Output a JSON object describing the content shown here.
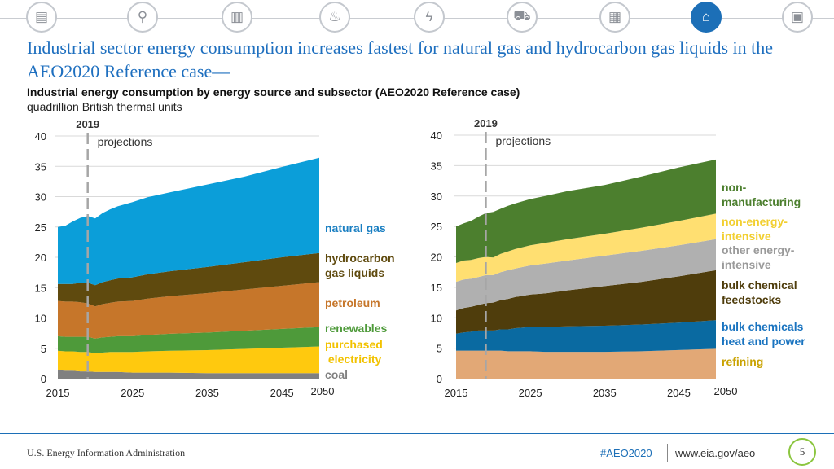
{
  "nav": {
    "icons": [
      {
        "name": "overview-icon",
        "glyph": "▤"
      },
      {
        "name": "analysis-icon",
        "glyph": "⚲"
      },
      {
        "name": "oil-barrel-icon",
        "glyph": "▥"
      },
      {
        "name": "natural-gas-flame-icon",
        "glyph": "♨"
      },
      {
        "name": "electricity-icon",
        "glyph": "ϟ"
      },
      {
        "name": "transportation-car-icon",
        "glyph": "⛟"
      },
      {
        "name": "buildings-icon",
        "glyph": "▦"
      },
      {
        "name": "industrial-factory-icon",
        "glyph": "⌂",
        "active": true
      },
      {
        "name": "documents-icon",
        "glyph": "▣"
      }
    ]
  },
  "header": {
    "title": "Industrial sector energy consumption increases fastest for natural gas and hydrocarbon gas liquids in the AEO2020 Reference case—",
    "subtitle": "Industrial energy consumption by energy source and subsector (AEO2020 Reference case)",
    "units": "quadrillion British thermal units"
  },
  "chart_data": [
    {
      "type": "area",
      "stacked": true,
      "title": "Industrial energy consumption by energy source",
      "x": [
        2015,
        2016,
        2017,
        2018,
        2019,
        2020,
        2021,
        2022,
        2023,
        2025,
        2027,
        2030,
        2035,
        2040,
        2045,
        2050
      ],
      "ylim": [
        0,
        40
      ],
      "yticks": [
        "0",
        "5",
        "10",
        "15",
        "20",
        "25",
        "30",
        "35",
        "40"
      ],
      "xticks": [
        "2015",
        "2025",
        "2035",
        "2045",
        "2050"
      ],
      "annotation": {
        "year_label": "2019",
        "x": 2019,
        "text": "projections"
      },
      "series": [
        {
          "name": "coal",
          "label": "coal",
          "color": "#808080",
          "label_color": "#808080",
          "values": [
            1.4,
            1.3,
            1.3,
            1.2,
            1.2,
            1.1,
            1.1,
            1.1,
            1.1,
            1.0,
            1.0,
            1.0,
            0.9,
            0.9,
            0.9,
            0.9
          ]
        },
        {
          "name": "purchased-electricity",
          "label": "purchased\n electricity",
          "color": "#ffc90e",
          "label_color": "#f2c200",
          "values": [
            3.2,
            3.2,
            3.2,
            3.2,
            3.2,
            3.1,
            3.2,
            3.3,
            3.3,
            3.4,
            3.5,
            3.6,
            3.8,
            4.0,
            4.2,
            4.4
          ]
        },
        {
          "name": "renewables",
          "label": "renewables",
          "color": "#4e9a3a",
          "label_color": "#4e9a3a",
          "values": [
            2.4,
            2.4,
            2.4,
            2.5,
            2.5,
            2.4,
            2.5,
            2.5,
            2.6,
            2.6,
            2.7,
            2.8,
            2.9,
            3.0,
            3.1,
            3.2
          ]
        },
        {
          "name": "petroleum",
          "label": "petroleum",
          "color": "#c6762a",
          "label_color": "#c6762a",
          "values": [
            5.8,
            5.8,
            5.8,
            5.7,
            5.5,
            5.3,
            5.5,
            5.6,
            5.7,
            5.8,
            6.0,
            6.2,
            6.5,
            6.8,
            7.1,
            7.4
          ]
        },
        {
          "name": "hydrocarbon-gas-liquids",
          "label": "hydrocarbon\ngas liquids",
          "color": "#5f4a0e",
          "label_color": "#5f4a0e",
          "values": [
            2.8,
            2.9,
            2.9,
            3.2,
            3.4,
            3.5,
            3.6,
            3.7,
            3.8,
            3.9,
            4.0,
            4.1,
            4.3,
            4.5,
            4.7,
            4.8
          ]
        },
        {
          "name": "natural-gas",
          "label": "natural gas",
          "color": "#0b9ed9",
          "label_color": "#1a7fc2",
          "values": [
            9.4,
            9.6,
            10.3,
            10.7,
            11.0,
            11.0,
            11.4,
            11.7,
            11.9,
            12.4,
            12.7,
            13.0,
            13.6,
            14.1,
            14.9,
            15.7
          ]
        }
      ]
    },
    {
      "type": "area",
      "stacked": true,
      "title": "Industrial energy consumption by subsector",
      "x": [
        2015,
        2016,
        2017,
        2018,
        2019,
        2020,
        2021,
        2022,
        2023,
        2025,
        2027,
        2030,
        2035,
        2040,
        2045,
        2050
      ],
      "ylim": [
        0,
        40
      ],
      "yticks": [
        "0",
        "5",
        "10",
        "15",
        "20",
        "25",
        "30",
        "35",
        "40"
      ],
      "xticks": [
        "2015",
        "2025",
        "2035",
        "2045",
        "2050"
      ],
      "annotation": {
        "year_label": "2019",
        "x": 2019,
        "text": "projections"
      },
      "series": [
        {
          "name": "refining",
          "label": "refining",
          "color": "#e2a876",
          "label_color": "#c9a200",
          "values": [
            4.6,
            4.6,
            4.6,
            4.6,
            4.6,
            4.6,
            4.6,
            4.5,
            4.5,
            4.5,
            4.4,
            4.4,
            4.4,
            4.5,
            4.7,
            4.9
          ]
        },
        {
          "name": "bulk-chemicals-heat-and-power",
          "label": "bulk chemicals\nheat and power",
          "color": "#0a6aa1",
          "label_color": "#1a74c0",
          "values": [
            2.8,
            3.0,
            3.1,
            3.3,
            3.3,
            3.3,
            3.5,
            3.6,
            3.8,
            4.0,
            4.1,
            4.2,
            4.3,
            4.4,
            4.5,
            4.7
          ]
        },
        {
          "name": "bulk-chemical-feedstocks",
          "label": "bulk chemical\nfeedstocks",
          "color": "#4f3d0c",
          "label_color": "#4f3d0c",
          "values": [
            3.8,
            4.0,
            4.1,
            4.2,
            4.5,
            4.6,
            4.8,
            5.0,
            5.1,
            5.3,
            5.5,
            5.9,
            6.5,
            7.0,
            7.6,
            8.2
          ]
        },
        {
          "name": "other-energy-intensive",
          "label": "other energy-\nintensive",
          "color": "#b0b0b0",
          "label_color": "#9a9a9a",
          "values": [
            4.7,
            4.7,
            4.6,
            4.6,
            4.6,
            4.5,
            4.6,
            4.7,
            4.7,
            4.8,
            4.9,
            4.9,
            5.0,
            5.1,
            5.1,
            5.1
          ]
        },
        {
          "name": "non-energy-intensive",
          "label": "non-energy-\nintensive",
          "color": "#ffdf71",
          "label_color": "#f2cf30",
          "values": [
            3.1,
            3.1,
            3.1,
            3.1,
            3.0,
            2.9,
            3.0,
            3.1,
            3.2,
            3.3,
            3.4,
            3.5,
            3.6,
            3.8,
            4.0,
            4.2
          ]
        },
        {
          "name": "non-manufacturing",
          "label": "non-\nmanufacturing",
          "color": "#4c7f2e",
          "label_color": "#4c7f2e",
          "values": [
            6.0,
            6.1,
            6.4,
            6.8,
            7.2,
            7.5,
            7.4,
            7.5,
            7.5,
            7.6,
            7.7,
            7.9,
            8.0,
            8.4,
            8.8,
            8.9
          ]
        }
      ]
    }
  ],
  "footer": {
    "org": "U.S. Energy Information Administration",
    "hashtag": "#AEO2020",
    "url": "www.eia.gov/aeo",
    "page": "5"
  }
}
